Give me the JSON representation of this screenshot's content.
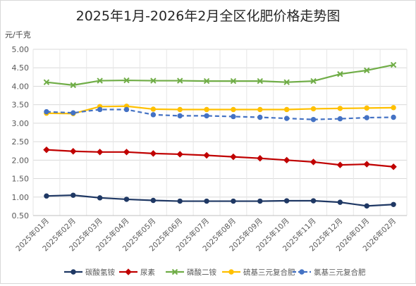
{
  "chart_data": {
    "type": "line",
    "title": "2025年1月-2026年2月全区化肥价格走势图",
    "ylabel": "元/千克",
    "xlabel": "",
    "ylim": [
      0.5,
      5.0
    ],
    "yticks": [
      "0.50",
      "1.00",
      "1.50",
      "2.00",
      "2.50",
      "3.00",
      "3.50",
      "4.00",
      "4.50",
      "5.00"
    ],
    "grid": true,
    "legend_position": "bottom",
    "categories": [
      "2025年01月",
      "2025年02月",
      "2025年03月",
      "2025年04月",
      "2025年05月",
      "2025年06月",
      "2025年07月",
      "2025年08月",
      "2025年09月",
      "2025年10月",
      "2025年11月",
      "2025年12月",
      "2026年01月",
      "2026年02月"
    ],
    "series": [
      {
        "name": "碳酸氢铵",
        "color": "#1f3864",
        "marker": "circle",
        "dash": false,
        "values": [
          1.03,
          1.05,
          0.98,
          0.94,
          0.91,
          0.89,
          0.89,
          0.89,
          0.89,
          0.9,
          0.9,
          0.86,
          0.76,
          0.8
        ]
      },
      {
        "name": "尿素",
        "color": "#c00000",
        "marker": "diamond",
        "dash": false,
        "values": [
          2.28,
          2.24,
          2.22,
          2.22,
          2.18,
          2.16,
          2.13,
          2.09,
          2.05,
          2.0,
          1.95,
          1.87,
          1.89,
          1.82
        ]
      },
      {
        "name": "磷酸二铵",
        "color": "#70ad47",
        "marker": "x",
        "dash": false,
        "values": [
          4.11,
          4.03,
          4.15,
          4.16,
          4.15,
          4.15,
          4.14,
          4.14,
          4.14,
          4.11,
          4.14,
          4.33,
          4.43,
          4.58
        ]
      },
      {
        "name": "硫基三元复合肥",
        "color": "#ffc000",
        "marker": "circle",
        "dash": false,
        "values": [
          3.27,
          3.26,
          3.45,
          3.46,
          3.38,
          3.37,
          3.37,
          3.37,
          3.37,
          3.37,
          3.39,
          3.4,
          3.41,
          3.42
        ]
      },
      {
        "name": "氯基三元复合肥",
        "color": "#4472c4",
        "marker": "circle",
        "dash": true,
        "values": [
          3.31,
          3.28,
          3.37,
          3.37,
          3.23,
          3.2,
          3.2,
          3.18,
          3.16,
          3.13,
          3.1,
          3.12,
          3.15,
          3.16
        ]
      }
    ]
  }
}
